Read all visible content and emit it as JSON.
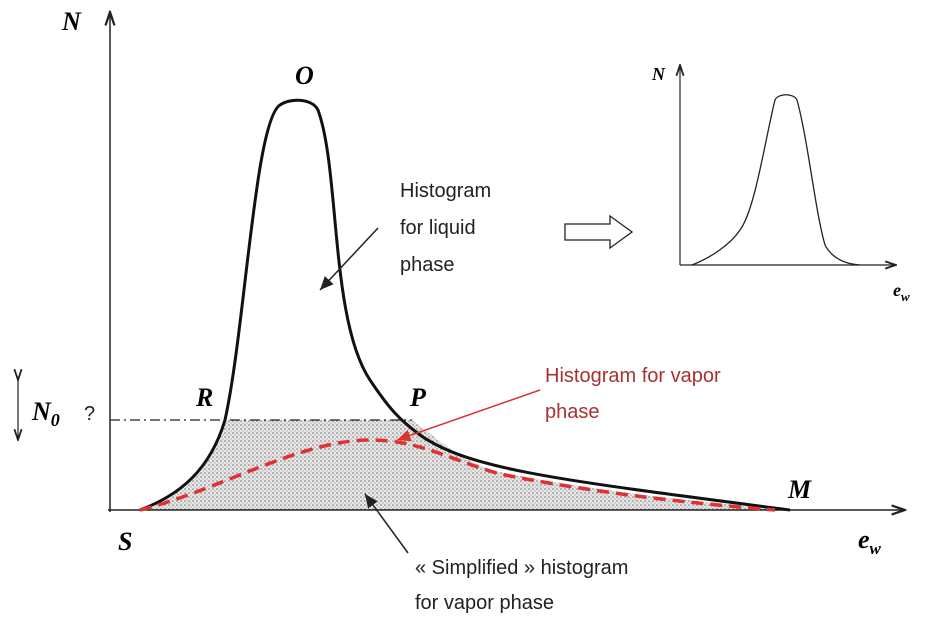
{
  "main_plot": {
    "y_axis_label": "N",
    "x_axis_label": "e",
    "x_axis_label_sub": "w",
    "points": {
      "top": "O",
      "left": "R",
      "right": "P",
      "start": "S",
      "end": "M"
    },
    "threshold_label": "N",
    "threshold_label_sub": "0",
    "threshold_question": "?"
  },
  "annotations": {
    "liquid": [
      "Histogram",
      "for liquid",
      "phase"
    ],
    "vapor": [
      "Histogram for vapor",
      "phase"
    ],
    "simplified": [
      "« Simplified » histogram",
      "for vapor phase"
    ]
  },
  "inset": {
    "y_axis_label": "N",
    "x_axis_label": "e",
    "x_axis_label_sub": "w"
  }
}
